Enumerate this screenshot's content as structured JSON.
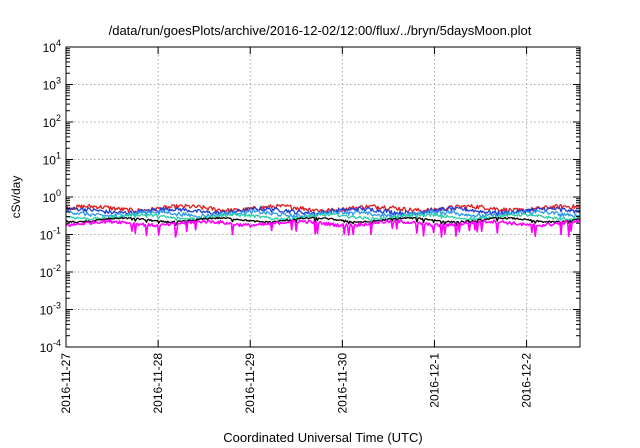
{
  "chart_data": {
    "type": "line",
    "title": "/data/run/goesPlots/archive/2016-12-02/12:00/flux/../bryn/5daysMoon.plot",
    "xlabel": "Coordinated Universal Time (UTC)",
    "ylabel": "cSv/day",
    "x_start": "2016-11-27",
    "x_end": "2016-12-02 14:00",
    "xlim_days": [
      0,
      5.58
    ],
    "x_ticks": [
      {
        "day": 0,
        "label": "2016-11-27"
      },
      {
        "day": 1,
        "label": "2016-11-28"
      },
      {
        "day": 2,
        "label": "2016-11-29"
      },
      {
        "day": 3,
        "label": "2016-11-30"
      },
      {
        "day": 4,
        "label": "2016-12-1"
      },
      {
        "day": 5,
        "label": "2016-12-2"
      }
    ],
    "y_scale": "log",
    "ylim": [
      0.0001,
      10000
    ],
    "y_ticks": [
      {
        "value": 10000,
        "base": "10",
        "exp": "4"
      },
      {
        "value": 1000,
        "base": "10",
        "exp": "3"
      },
      {
        "value": 100,
        "base": "10",
        "exp": "2"
      },
      {
        "value": 10,
        "base": "10",
        "exp": "1"
      },
      {
        "value": 1,
        "base": "10",
        "exp": "0"
      },
      {
        "value": 0.1,
        "base": "10",
        "exp": "-1"
      },
      {
        "value": 0.01,
        "base": "10",
        "exp": "-2"
      },
      {
        "value": 0.001,
        "base": "10",
        "exp": "-3"
      },
      {
        "value": 0.0001,
        "base": "10",
        "exp": "-4"
      }
    ],
    "grid": true,
    "legend": "none",
    "series": [
      {
        "color": "#e41a1c",
        "base": 0.5,
        "amp": 0.14,
        "drop": 0.0
      },
      {
        "color": "#1e3fd6",
        "base": 0.43,
        "amp": 0.13,
        "drop": 0.08
      },
      {
        "color": "#2e9be8",
        "base": 0.36,
        "amp": 0.12,
        "drop": 0.12
      },
      {
        "color": "#2ecfa6",
        "base": 0.3,
        "amp": 0.09,
        "drop": 0.1
      },
      {
        "color": "#000000",
        "base": 0.245,
        "amp": 0.05,
        "drop": 0.18
      },
      {
        "color": "#ff00ff",
        "base": 0.2,
        "amp": 0.1,
        "drop": 0.5
      }
    ]
  }
}
